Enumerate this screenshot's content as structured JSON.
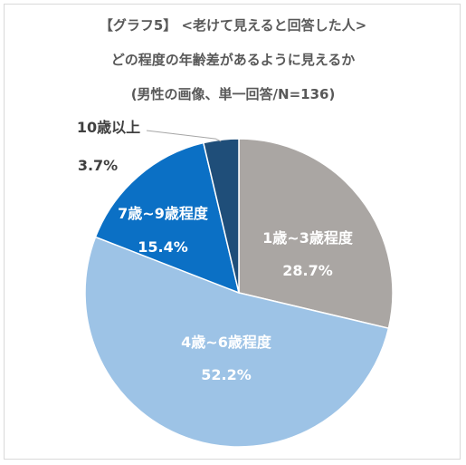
{
  "titles": [
    "【グラフ5】 <老けて見えると回答した人>",
    "どの程度の年齢差があるように見えるか",
    "(男性の画像、単一回答/N=136)"
  ],
  "chart_data": {
    "type": "pie",
    "title": "【グラフ5】 <老けて見えると回答した人> どの程度の年齢差があるように見えるか (男性の画像、単一回答/N=136)",
    "categories": [
      "1歳~3歳程度",
      "4歳~6歳程度",
      "7歳~9歳程度",
      "10歳以上"
    ],
    "values": [
      28.7,
      52.2,
      15.4,
      3.7
    ],
    "value_labels": [
      "28.7%",
      "52.2%",
      "15.4%",
      "3.7%"
    ],
    "colors": [
      "#aaa6a3",
      "#9dc3e6",
      "#0b70c5",
      "#1f4e79"
    ],
    "label_colors": [
      "#ffffff",
      "#ffffff",
      "#ffffff",
      "#404040"
    ],
    "start": "12 o'clock",
    "direction": "clockwise",
    "legend": "none"
  }
}
